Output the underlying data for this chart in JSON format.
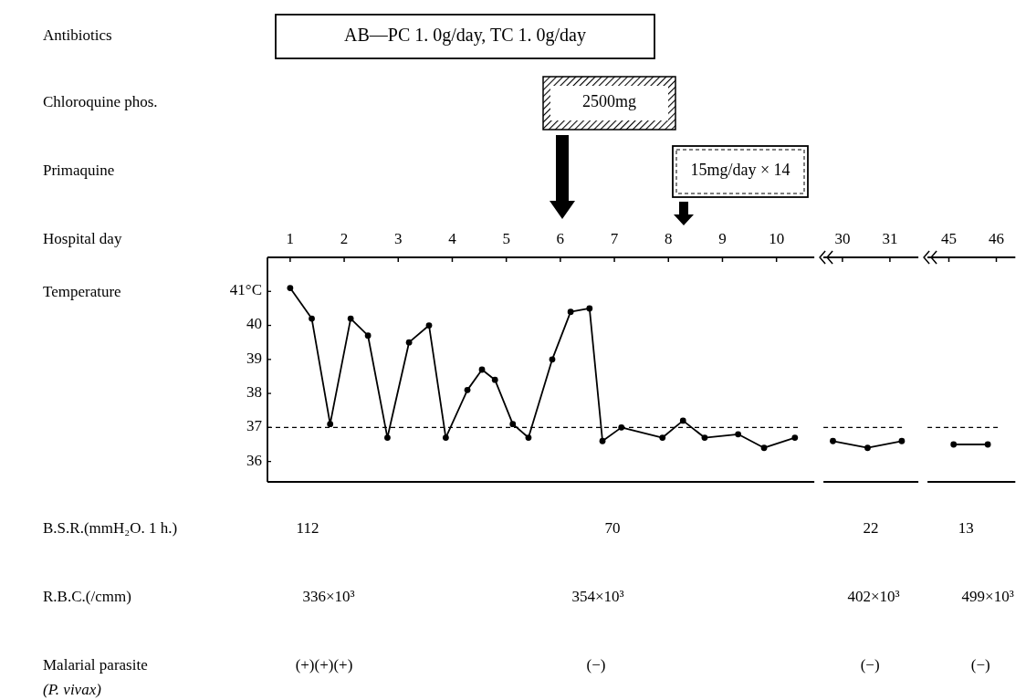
{
  "chart_data": [
    {
      "type": "line",
      "xlim": [
        0.58,
        10.7
      ],
      "xticks": [
        1,
        2,
        3,
        4,
        5,
        6,
        7,
        8,
        9,
        10
      ],
      "ylim": [
        35.4,
        42.0
      ],
      "yticks": [
        36,
        37,
        38,
        39,
        40,
        {
          "value": 41,
          "label": "41°C"
        }
      ],
      "marker": "circle",
      "line_style": "solid",
      "series": [
        {
          "color": "#000000",
          "x": [
            1.0,
            1.4,
            1.74,
            2.12,
            2.44,
            2.8,
            3.2,
            3.57,
            3.88,
            4.28,
            4.55,
            4.79,
            5.12,
            5.41,
            5.85,
            6.19,
            6.54,
            6.78,
            7.13,
            7.89,
            8.27,
            8.67,
            9.29,
            9.77,
            10.34
          ],
          "values": [
            41.1,
            40.2,
            37.1,
            40.2,
            39.7,
            36.7,
            39.5,
            40.0,
            36.7,
            38.1,
            38.7,
            38.4,
            37.1,
            36.7,
            39.0,
            40.4,
            40.5,
            36.6,
            37.0,
            36.7,
            37.2,
            36.7,
            36.8,
            36.4,
            36.7
          ]
        }
      ],
      "ref_lines": [
        {
          "axis": "y",
          "value": 37,
          "line_style": "dashed",
          "color": "#000000"
        }
      ],
      "annotations": [
        "Antibiotics",
        "Chloroquine phos.",
        "Primaquine",
        "Hospital day",
        "Temperature",
        "B.S.R.(mmH₂O. 1 h.)",
        "R.B.C.(/cmm)",
        "Malarial parasite",
        "(P. vivax)",
        "AB—PC 1. 0g/day, TC 1. 0g/day",
        "2500mg",
        "15mg/day × 14",
        "112",
        "70",
        "336×10³",
        "354×10³",
        "(+)(+)(+)",
        "(−)"
      ]
    },
    {
      "type": "line",
      "xlim": [
        29.6,
        31.6
      ],
      "xticks": [
        30,
        31
      ],
      "ylim": [
        35.4,
        42.0
      ],
      "tick_labels": "x",
      "marker": "circle",
      "line_style": "solid",
      "series": [
        {
          "color": "#000000",
          "x": [
            29.8,
            30.53,
            31.25
          ],
          "values": [
            36.6,
            36.4,
            36.6
          ]
        }
      ],
      "ref_lines": [
        {
          "axis": "y",
          "value": 37,
          "line_style": "dashed",
          "color": "#000000"
        }
      ],
      "annotations": [
        "22",
        "402×10³",
        "(−)"
      ]
    },
    {
      "type": "line",
      "xlim": [
        44.55,
        46.4
      ],
      "xticks": [
        45,
        46
      ],
      "ylim": [
        35.4,
        42.0
      ],
      "tick_labels": "x",
      "marker": "circle",
      "line_style": "solid",
      "series": [
        {
          "color": "#000000",
          "x": [
            45.1,
            45.82
          ],
          "values": [
            36.5,
            36.5
          ]
        }
      ],
      "ref_lines": [
        {
          "axis": "y",
          "value": 37,
          "line_style": "dashed",
          "color": "#000000"
        }
      ],
      "annotations": [
        "13",
        "499×10³",
        "(−)"
      ]
    }
  ]
}
